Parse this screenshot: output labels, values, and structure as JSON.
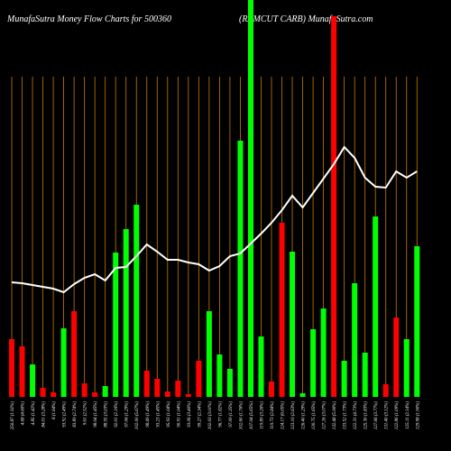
{
  "chart_data": {
    "type": "bar",
    "title": "MunafaSutra  Money Flow  Charts for 500360",
    "subtitle": "(RAMCUT CARB) MunafaSutra.com",
    "categories": [
      "250.87 (1.92%)",
      "4.68 (4.60%)",
      "4.85 (1.42%)",
      "84.01 (3.28%)",
      "8 (1.64%)",
      "93.92 (2.49%)",
      "83.89 (2.74%)",
      "9.61 (2.52%)",
      "98.04 (1.45%)",
      "88.55 (3.03%)",
      "92.01 (2.16%)",
      "97.06 (1.29%)",
      "102.00 (5.67%)",
      "98.49 (1.49%)",
      "93.23 (1.45%)",
      "95.93 (1.04%)",
      "90.91 (1.04%)",
      "93.06 (3.40%)",
      "99.27 (2.34%)",
      "102.03 (3.01%)",
      "96.77 (1.82%)",
      "97.09 (1.35%)",
      "102.60 (1.76%)",
      "107.04 (5.65%)",
      "119.89 (3.26%)",
      "119.73 (2.84%)",
      "124.17 (6.05%)",
      "123.10 (2.63%)",
      "126.40 (1.29%)",
      "130.75 (1.65%)",
      "127.26 (3.07%)",
      "132.48 (5.90%)",
      "133.52 (1.73%)",
      "122.31 (4.73%)",
      "125.30 (1.83%)",
      "127.66 (3.77%)",
      "131.40 (3.12%)",
      "122.86 (1.09%)",
      "125.11 (2.14%)",
      "129.98 (1.90%)"
    ],
    "values": [
      64,
      56,
      36,
      10,
      5,
      76,
      95,
      15,
      5,
      12,
      160,
      186,
      213,
      29,
      20,
      6,
      18,
      3,
      40,
      95,
      47,
      31,
      284,
      440,
      67,
      17,
      193,
      161,
      4,
      75,
      98,
      422,
      40,
      126,
      49,
      200,
      14,
      88,
      64,
      167
    ],
    "colors": [
      "#ff0000",
      "#ff0000",
      "#00ff00",
      "#ff0000",
      "#ff0000",
      "#00ff00",
      "#ff0000",
      "#ff0000",
      "#ff0000",
      "#00ff00",
      "#00ff00",
      "#00ff00",
      "#00ff00",
      "#ff0000",
      "#ff0000",
      "#ff0000",
      "#ff0000",
      "#ff0000",
      "#ff0000",
      "#00ff00",
      "#00ff00",
      "#00ff00",
      "#00ff00",
      "#00ff00",
      "#00ff00",
      "#ff0000",
      "#ff0000",
      "#00ff00",
      "#00ff00",
      "#00ff00",
      "#00ff00",
      "#ff0000",
      "#00ff00",
      "#00ff00",
      "#00ff00",
      "#00ff00",
      "#ff0000",
      "#ff0000",
      "#00ff00",
      "#00ff00"
    ],
    "line": {
      "color": "#ffffff",
      "values": [
        127,
        126,
        124,
        122,
        120,
        116,
        125,
        132,
        136,
        129,
        143,
        144,
        156,
        169,
        161,
        152,
        152,
        149,
        147,
        140,
        145,
        156,
        159,
        170,
        181,
        193,
        207,
        223,
        210,
        226,
        242,
        258,
        277,
        265,
        243,
        233,
        232,
        250,
        243,
        250
      ]
    },
    "ylim": [
      0,
      440
    ],
    "grid_color": "#cc7a00"
  }
}
